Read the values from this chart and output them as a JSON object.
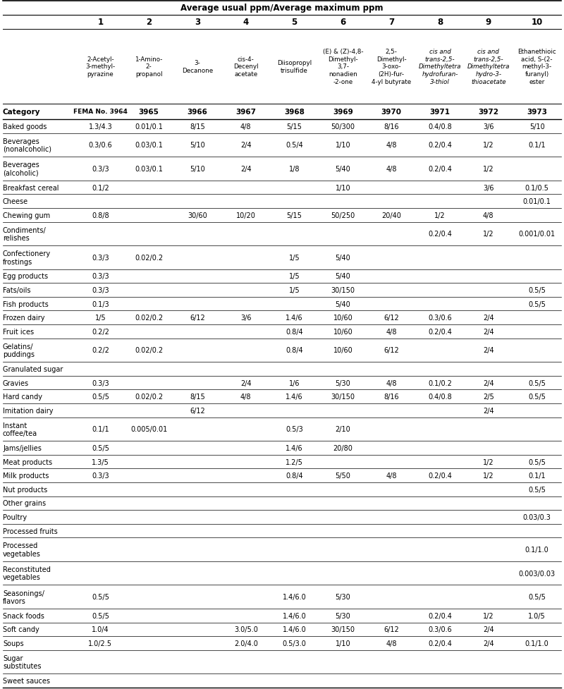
{
  "title": "Average usual ppm/Average maximum ppm",
  "col_numbers": [
    "1",
    "2",
    "3",
    "4",
    "5",
    "6",
    "7",
    "8",
    "9",
    "10"
  ],
  "fema_row": [
    "FEMA No. 3964",
    "3965",
    "3966",
    "3967",
    "3968",
    "3969",
    "3970",
    "3971",
    "3972",
    "3973"
  ],
  "col_name_texts": [
    "2-Acetyl-\n3-methyl-\npyrazine",
    "1-Amino-\n2-\npropanol",
    "3-\nDecanone",
    "cis-4-\nDecenyl\nacetate",
    "Diisopropyl\ntrisulfide",
    "(E) & (Z)-4,8-\nDimethyl-\n3,7-\nnonadien\n-2-one",
    "2,5-\nDimethyl-\n3-oxo-\n(2H)-fur-\n4-yl butyrate",
    "cis and\ntrans-2,5-\nDimethyltetra\nhydrofuran-\n3-thiol",
    "cis and\ntrans-2,5-\nDimethyltetra\nhydro-3-\nthioacetate",
    "Ethanethioic\nacid, S-(2-\nmethyl-3-\nfuranyl)\nester"
  ],
  "italic_col_indices": [
    7,
    8
  ],
  "rows": [
    {
      "cat": "Baked goods",
      "vals": [
        "1.3/4.3",
        "0.01/0.1",
        "8/15",
        "4/8",
        "5/15",
        "50/300",
        "8/16",
        "0.4/0.8",
        "3/6",
        "5/10"
      ],
      "ml": false
    },
    {
      "cat": "Beverages\n(nonalcoholic)",
      "vals": [
        "0.3/0.6",
        "0.03/0.1",
        "5/10",
        "2/4",
        "0.5/4",
        "1/10",
        "4/8",
        "0.2/0.4",
        "1/2",
        "0.1/1"
      ],
      "ml": true
    },
    {
      "cat": "Beverages\n(alcoholic)",
      "vals": [
        "0.3/3",
        "0.03/0.1",
        "5/10",
        "2/4",
        "1/8",
        "5/40",
        "4/8",
        "0.2/0.4",
        "1/2",
        ""
      ],
      "ml": true
    },
    {
      "cat": "Breakfast cereal",
      "vals": [
        "0.1/2",
        "",
        "",
        "",
        "",
        "1/10",
        "",
        "",
        "3/6",
        "0.1/0.5"
      ],
      "ml": false
    },
    {
      "cat": "Cheese",
      "vals": [
        "",
        "",
        "",
        "",
        "",
        "",
        "",
        "",
        "",
        "0.01/0.1"
      ],
      "ml": false
    },
    {
      "cat": "Chewing gum",
      "vals": [
        "0.8/8",
        "",
        "30/60",
        "10/20",
        "5/15",
        "50/250",
        "20/40",
        "1/2",
        "4/8",
        ""
      ],
      "ml": false
    },
    {
      "cat": "Condiments/\nrelishes",
      "vals": [
        "",
        "",
        "",
        "",
        "",
        "",
        "",
        "0.2/0.4",
        "1/2",
        "0.001/0.01"
      ],
      "ml": true
    },
    {
      "cat": "Confectionery\nfrostings",
      "vals": [
        "0.3/3",
        "0.02/0.2",
        "",
        "",
        "1/5",
        "5/40",
        "",
        "",
        "",
        ""
      ],
      "ml": true
    },
    {
      "cat": "Egg products",
      "vals": [
        "0.3/3",
        "",
        "",
        "",
        "1/5",
        "5/40",
        "",
        "",
        "",
        ""
      ],
      "ml": false
    },
    {
      "cat": "Fats/oils",
      "vals": [
        "0.3/3",
        "",
        "",
        "",
        "1/5",
        "30/150",
        "",
        "",
        "",
        "0.5/5"
      ],
      "ml": false
    },
    {
      "cat": "Fish products",
      "vals": [
        "0.1/3",
        "",
        "",
        "",
        "",
        "5/40",
        "",
        "",
        "",
        "0.5/5"
      ],
      "ml": false
    },
    {
      "cat": "Frozen dairy",
      "vals": [
        "1/5",
        "0.02/0.2",
        "6/12",
        "3/6",
        "1.4/6",
        "10/60",
        "6/12",
        "0.3/0.6",
        "2/4",
        ""
      ],
      "ml": false
    },
    {
      "cat": "Fruit ices",
      "vals": [
        "0.2/2",
        "",
        "",
        "",
        "0.8/4",
        "10/60",
        "4/8",
        "0.2/0.4",
        "2/4",
        ""
      ],
      "ml": false
    },
    {
      "cat": "Gelatins/\npuddings",
      "vals": [
        "0.2/2",
        "0.02/0.2",
        "",
        "",
        "0.8/4",
        "10/60",
        "6/12",
        "",
        "2/4",
        ""
      ],
      "ml": true
    },
    {
      "cat": "Granulated sugar",
      "vals": [
        "",
        "",
        "",
        "",
        "",
        "",
        "",
        "",
        "",
        ""
      ],
      "ml": false
    },
    {
      "cat": "Gravies",
      "vals": [
        "0.3/3",
        "",
        "",
        "2/4",
        "1/6",
        "5/30",
        "4/8",
        "0.1/0.2",
        "2/4",
        "0.5/5"
      ],
      "ml": false
    },
    {
      "cat": "Hard candy",
      "vals": [
        "0.5/5",
        "0.02/0.2",
        "8/15",
        "4/8",
        "1.4/6",
        "30/150",
        "8/16",
        "0.4/0.8",
        "2/5",
        "0.5/5"
      ],
      "ml": false
    },
    {
      "cat": "Imitation dairy",
      "vals": [
        "",
        "",
        "6/12",
        "",
        "",
        "",
        "",
        "",
        "2/4",
        ""
      ],
      "ml": false
    },
    {
      "cat": "Instant\ncoffee/tea",
      "vals": [
        "0.1/1",
        "0.005/0.01",
        "",
        "",
        "0.5/3",
        "2/10",
        "",
        "",
        "",
        ""
      ],
      "ml": true
    },
    {
      "cat": "Jams/jellies",
      "vals": [
        "0.5/5",
        "",
        "",
        "",
        "1.4/6",
        "20/80",
        "",
        "",
        "",
        ""
      ],
      "ml": false
    },
    {
      "cat": "Meat products",
      "vals": [
        "1.3/5",
        "",
        "",
        "",
        "1.2/5",
        "",
        "",
        "",
        "1/2",
        "0.5/5"
      ],
      "ml": false
    },
    {
      "cat": "Milk products",
      "vals": [
        "0.3/3",
        "",
        "",
        "",
        "0.8/4",
        "5/50",
        "4/8",
        "0.2/0.4",
        "1/2",
        "0.1/1"
      ],
      "ml": false
    },
    {
      "cat": "Nut products",
      "vals": [
        "",
        "",
        "",
        "",
        "",
        "",
        "",
        "",
        "",
        "0.5/5"
      ],
      "ml": false
    },
    {
      "cat": "Other grains",
      "vals": [
        "",
        "",
        "",
        "",
        "",
        "",
        "",
        "",
        "",
        ""
      ],
      "ml": false
    },
    {
      "cat": "Poultry",
      "vals": [
        "",
        "",
        "",
        "",
        "",
        "",
        "",
        "",
        "",
        "0.03/0.3"
      ],
      "ml": false
    },
    {
      "cat": "Processed fruits",
      "vals": [
        "",
        "",
        "",
        "",
        "",
        "",
        "",
        "",
        "",
        ""
      ],
      "ml": false
    },
    {
      "cat": "Processed\nvegetables",
      "vals": [
        "",
        "",
        "",
        "",
        "",
        "",
        "",
        "",
        "",
        "0.1/1.0"
      ],
      "ml": true
    },
    {
      "cat": "Reconstituted\nvegetables",
      "vals": [
        "",
        "",
        "",
        "",
        "",
        "",
        "",
        "",
        "",
        "0.003/0.03"
      ],
      "ml": true
    },
    {
      "cat": "Seasonings/\nflavors",
      "vals": [
        "0.5/5",
        "",
        "",
        "",
        "1.4/6.0",
        "5/30",
        "",
        "",
        "",
        "0.5/5"
      ],
      "ml": true
    },
    {
      "cat": "Snack foods",
      "vals": [
        "0.5/5",
        "",
        "",
        "",
        "1.4/6.0",
        "5/30",
        "",
        "0.2/0.4",
        "1/2",
        "1.0/5"
      ],
      "ml": false
    },
    {
      "cat": "Soft candy",
      "vals": [
        "1.0/4",
        "",
        "",
        "3.0/5.0",
        "1.4/6.0",
        "30/150",
        "6/12",
        "0.3/0.6",
        "2/4",
        ""
      ],
      "ml": false
    },
    {
      "cat": "Soups",
      "vals": [
        "1.0/2.5",
        "",
        "",
        "2.0/4.0",
        "0.5/3.0",
        "1/10",
        "4/8",
        "0.2/0.4",
        "2/4",
        "0.1/1.0"
      ],
      "ml": false
    },
    {
      "cat": "Sugar\nsubstitutes",
      "vals": [
        "",
        "",
        "",
        "",
        "",
        "",
        "",
        "",
        "",
        ""
      ],
      "ml": true
    },
    {
      "cat": "Sweet sauces",
      "vals": [
        "",
        "",
        "",
        "",
        "",
        "",
        "",
        "",
        "",
        ""
      ],
      "ml": false
    }
  ]
}
